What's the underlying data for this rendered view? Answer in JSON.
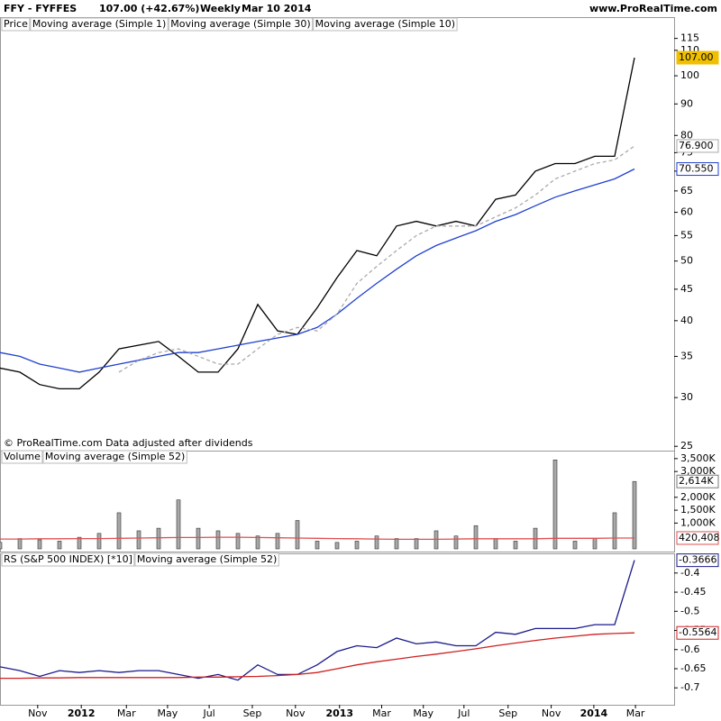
{
  "header": {
    "symbol": "FFY - FYFFES",
    "price": "107.00 (+42.67%)",
    "period": "Weekly",
    "date": "Mar 10 2014",
    "site": "www.ProRealTime.com"
  },
  "chart_data": [
    {
      "type": "line",
      "label": "Price",
      "log_scale": true,
      "note": "© ProRealTime.com  Data adjusted after dividends",
      "x": [
        0,
        4,
        8,
        12,
        16,
        20,
        24,
        28,
        32,
        36,
        40,
        44,
        48,
        52,
        56,
        60,
        64,
        68,
        72,
        76,
        80,
        84,
        88,
        92,
        96,
        100,
        104,
        108,
        112,
        116,
        120,
        124,
        128
      ],
      "xlim": [
        0,
        136
      ],
      "ylim": [
        24.6,
        118
      ],
      "yticks": [
        25,
        30,
        35,
        40,
        45,
        50,
        55,
        60,
        65,
        70,
        75,
        80,
        90,
        100,
        110,
        115
      ],
      "series": [
        {
          "name": "Moving average (Simple 1)",
          "color": "#000000",
          "label_fill": "#f0c000",
          "last_label": "107.00",
          "values": [
            33.5,
            33,
            31.5,
            31,
            31,
            33,
            36,
            36.5,
            37,
            35,
            33,
            33,
            36,
            42.5,
            38.5,
            38,
            42,
            47,
            52,
            51,
            57,
            58,
            57,
            58,
            57,
            63,
            64,
            70,
            72,
            72,
            74,
            74,
            107
          ]
        },
        {
          "name": "Moving average (Simple 30)",
          "color": "#2040d0",
          "last_label": "70.550",
          "values": [
            35.5,
            35,
            34,
            33.5,
            33,
            33.5,
            34,
            34.5,
            35,
            35.5,
            35.5,
            36,
            36.5,
            37,
            37.5,
            38,
            39,
            41,
            43.5,
            46,
            48.5,
            51,
            53,
            54.5,
            56,
            58,
            59.5,
            61.5,
            63.5,
            65,
            66.5,
            68,
            70.55
          ]
        },
        {
          "name": "Moving average (Simple 10)",
          "color": "#aaaaaa",
          "dashed": true,
          "last_label": "76.900",
          "values": [
            null,
            null,
            null,
            null,
            null,
            null,
            33,
            34.5,
            35.5,
            36,
            35,
            34,
            34,
            36,
            38,
            39,
            38.5,
            41,
            46,
            49,
            52,
            55,
            57,
            57,
            57,
            59,
            61,
            64,
            68,
            70,
            72,
            73,
            76.9
          ]
        }
      ]
    },
    {
      "type": "bar",
      "label": "Volume",
      "color": "#a8a8a8",
      "last_label": "2,614K",
      "x": [
        0,
        4,
        8,
        12,
        16,
        20,
        24,
        28,
        32,
        36,
        40,
        44,
        48,
        52,
        56,
        60,
        64,
        68,
        72,
        76,
        80,
        84,
        88,
        92,
        96,
        100,
        104,
        108,
        112,
        116,
        120,
        124,
        128
      ],
      "xlim": [
        0,
        136
      ],
      "ylim": [
        0,
        3810000
      ],
      "yticks": [
        {
          "value": 1000000,
          "label": "1,000K"
        },
        {
          "value": 1500000,
          "label": "1,500K"
        },
        {
          "value": 2000000,
          "label": "2,000K"
        },
        {
          "value": 3000000,
          "label": "3,000K"
        },
        {
          "value": 3500000,
          "label": "3,500K"
        }
      ],
      "values": [
        250000,
        400000,
        350000,
        300000,
        450000,
        600000,
        1400000,
        700000,
        800000,
        1900000,
        800000,
        700000,
        600000,
        500000,
        600000,
        1100000,
        300000,
        250000,
        300000,
        500000,
        400000,
        400000,
        700000,
        500000,
        900000,
        400000,
        300000,
        800000,
        3450000,
        300000,
        400000,
        1400000,
        2614000
      ],
      "series": [
        {
          "name": "Moving average (Simple 52)",
          "color": "#e05050",
          "last_label": "420,408",
          "values": [
            380000,
            380000,
            390000,
            390000,
            400000,
            400000,
            410000,
            420000,
            430000,
            440000,
            440000,
            450000,
            450000,
            440000,
            430000,
            420000,
            410000,
            400000,
            390000,
            380000,
            370000,
            370000,
            370000,
            380000,
            390000,
            390000,
            390000,
            390000,
            410000,
            410000,
            410000,
            420000,
            420408
          ]
        }
      ]
    },
    {
      "type": "line",
      "x": [
        0,
        4,
        8,
        12,
        16,
        20,
        24,
        28,
        32,
        36,
        40,
        44,
        48,
        52,
        56,
        60,
        64,
        68,
        72,
        76,
        80,
        84,
        88,
        92,
        96,
        100,
        104,
        108,
        112,
        116,
        120,
        124,
        128
      ],
      "xlim": [
        0,
        136
      ],
      "ylim": [
        -0.7395,
        -0.351
      ],
      "yticks": [
        -0.7,
        -0.65,
        -0.6,
        -0.55,
        -0.5,
        -0.45,
        -0.4
      ],
      "xticks": [
        {
          "value": 7.6,
          "label": "Nov"
        },
        {
          "value": 16.4,
          "label": "2012"
        },
        {
          "value": 25.5,
          "label": "Mar"
        },
        {
          "value": 33.8,
          "label": "May"
        },
        {
          "value": 42.2,
          "label": "Jul"
        },
        {
          "value": 50.9,
          "label": "Sep"
        },
        {
          "value": 59.6,
          "label": "Nov"
        },
        {
          "value": 68.5,
          "label": "2013"
        },
        {
          "value": 77,
          "label": "Mar"
        },
        {
          "value": 85.4,
          "label": "May"
        },
        {
          "value": 93.6,
          "label": "Jul"
        },
        {
          "value": 102.5,
          "label": "Sep"
        },
        {
          "value": 111.2,
          "label": "Nov"
        },
        {
          "value": 119.8,
          "label": "2014"
        },
        {
          "value": 128.2,
          "label": "Mar"
        }
      ],
      "series": [
        {
          "name": "RS (S&P 500 INDEX) [*10]",
          "color": "#1a1a8c",
          "last_label": "-0.3666",
          "values": [
            -0.645,
            -0.655,
            -0.67,
            -0.655,
            -0.66,
            -0.655,
            -0.66,
            -0.655,
            -0.655,
            -0.665,
            -0.675,
            -0.665,
            -0.68,
            -0.64,
            -0.665,
            -0.665,
            -0.64,
            -0.605,
            -0.59,
            -0.595,
            -0.57,
            -0.585,
            -0.58,
            -0.59,
            -0.59,
            -0.555,
            -0.56,
            -0.545,
            -0.545,
            -0.545,
            -0.535,
            -0.535,
            -0.3666
          ]
        },
        {
          "name": "Moving average (Simple 52)",
          "color": "#d02020",
          "last_label": "-0.5564",
          "values": [
            -0.675,
            -0.675,
            -0.674,
            -0.674,
            -0.673,
            -0.673,
            -0.673,
            -0.673,
            -0.673,
            -0.673,
            -0.672,
            -0.672,
            -0.671,
            -0.67,
            -0.668,
            -0.665,
            -0.66,
            -0.65,
            -0.64,
            -0.632,
            -0.625,
            -0.618,
            -0.612,
            -0.605,
            -0.598,
            -0.59,
            -0.583,
            -0.576,
            -0.57,
            -0.565,
            -0.56,
            -0.558,
            -0.5564
          ]
        }
      ]
    }
  ]
}
